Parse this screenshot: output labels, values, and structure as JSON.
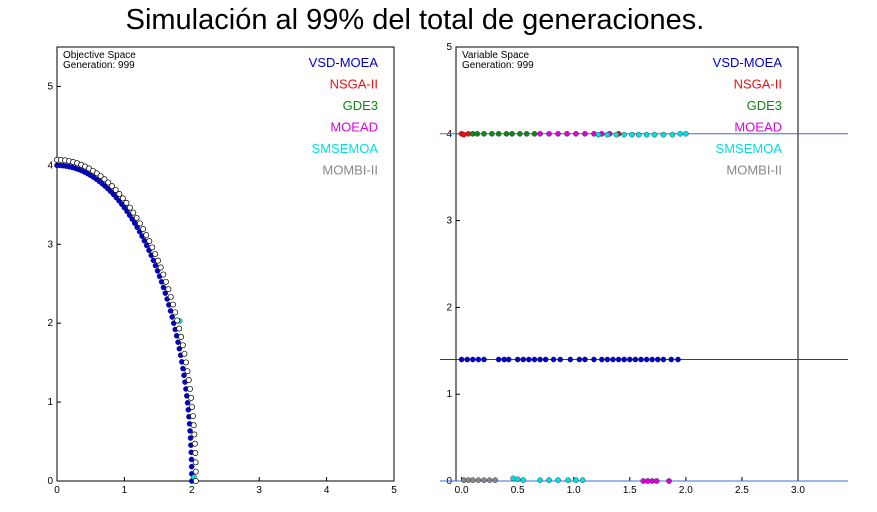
{
  "slide": {
    "title": "Simulación al 99% del total de generaciones."
  },
  "colors": {
    "VSD-MOEA": "#0000cc",
    "NSGA-II": "#ee1111",
    "GDE3": "#118811",
    "MOEAD": "#dd00dd",
    "SMSEMOA": "#00e0e0",
    "MOMBI-II": "#888888"
  },
  "chart_data": [
    {
      "type": "scatter",
      "corner_text": [
        "Objective Space",
        "Generation: 999"
      ],
      "xlim": [
        0,
        5
      ],
      "ylim": [
        0,
        5.5
      ],
      "x_ticks": [
        "0",
        "1",
        "2",
        "3",
        "4",
        "5"
      ],
      "y_ticks": [
        "0",
        "1",
        "2",
        "3",
        "4",
        "5"
      ],
      "legend": [
        "VSD-MOEA",
        "NSGA-II",
        "GDE3",
        "MOEAD",
        "SMSEMOA",
        "MOMBI-II"
      ],
      "legend_position": "top-right",
      "series": [
        {
          "name": "VSD-MOEA",
          "shape": "quarter-arc",
          "radius_x": 2.0,
          "radius_y": 4.0,
          "count": 70,
          "points": []
        },
        {
          "name": "SMSEMOA",
          "points": [
            [
              1.82,
              2.03
            ],
            [
              2.03,
              0.05
            ]
          ]
        },
        {
          "name": "MOMBI-II",
          "shape": "quarter-arc",
          "radius_x": 2.06,
          "radius_y": 4.07,
          "count": 55,
          "hollow": true,
          "points": []
        }
      ]
    },
    {
      "type": "scatter",
      "corner_text": [
        "Variable Space",
        "Generation: 999"
      ],
      "xlim": [
        -0.05,
        3.0
      ],
      "ylim": [
        0,
        5
      ],
      "x_ticks": [
        "0.0",
        "0.5",
        "1.0",
        "1.5",
        "2.0",
        "2.5",
        "3.0"
      ],
      "y_ticks": [
        "0",
        "1",
        "2",
        "3",
        "4",
        "5"
      ],
      "legend": [
        "VSD-MOEA",
        "NSGA-II",
        "GDE3",
        "MOEAD",
        "SMSEMOA",
        "MOMBI-II"
      ],
      "legend_position": "top-right",
      "reference_lines": [
        {
          "y": 4.0,
          "color": "#3a6fd8"
        },
        {
          "y": 1.4,
          "color": "#cc0000"
        },
        {
          "y": 0.0,
          "color": "#3a6fd8"
        }
      ],
      "series": [
        {
          "name": "VSD-MOEA",
          "points": [
            [
              0.0,
              1.4
            ],
            [
              0.05,
              1.4
            ],
            [
              0.1,
              1.4
            ],
            [
              0.15,
              1.4
            ],
            [
              0.2,
              1.4
            ],
            [
              0.33,
              1.4
            ],
            [
              0.38,
              1.4
            ],
            [
              0.42,
              1.4
            ],
            [
              0.5,
              1.4
            ],
            [
              0.55,
              1.4
            ],
            [
              0.6,
              1.4
            ],
            [
              0.65,
              1.4
            ],
            [
              0.7,
              1.4
            ],
            [
              0.75,
              1.4
            ],
            [
              0.82,
              1.4
            ],
            [
              0.88,
              1.4
            ],
            [
              0.97,
              1.4
            ],
            [
              1.05,
              1.4
            ],
            [
              1.1,
              1.4
            ],
            [
              1.18,
              1.4
            ],
            [
              1.25,
              1.4
            ],
            [
              1.3,
              1.4
            ],
            [
              1.35,
              1.4
            ],
            [
              1.4,
              1.4
            ],
            [
              1.45,
              1.4
            ],
            [
              1.5,
              1.4
            ],
            [
              1.55,
              1.4
            ],
            [
              1.6,
              1.4
            ],
            [
              1.65,
              1.4
            ],
            [
              1.7,
              1.4
            ],
            [
              1.75,
              1.4
            ],
            [
              1.8,
              1.4
            ],
            [
              1.87,
              1.4
            ],
            [
              1.93,
              1.4
            ]
          ]
        },
        {
          "name": "NSGA-II",
          "points": [
            [
              0.0,
              4.0
            ],
            [
              0.02,
              3.99
            ],
            [
              0.06,
              4.0
            ],
            [
              1.4,
              4.0
            ]
          ]
        },
        {
          "name": "GDE3",
          "points": [
            [
              0.1,
              4.0
            ],
            [
              0.14,
              4.0
            ],
            [
              0.2,
              4.0
            ],
            [
              0.27,
              4.0
            ],
            [
              0.33,
              4.0
            ],
            [
              0.4,
              4.0
            ],
            [
              0.45,
              4.0
            ],
            [
              0.52,
              4.0
            ],
            [
              0.58,
              4.0
            ],
            [
              0.65,
              4.0
            ]
          ]
        },
        {
          "name": "MOEAD",
          "points": [
            [
              0.7,
              4.0
            ],
            [
              0.78,
              4.0
            ],
            [
              0.86,
              4.0
            ],
            [
              0.94,
              4.0
            ],
            [
              1.02,
              4.0
            ],
            [
              1.1,
              4.0
            ],
            [
              1.18,
              4.0
            ],
            [
              1.25,
              4.0
            ],
            [
              1.32,
              4.0
            ],
            [
              1.62,
              0.0
            ],
            [
              1.66,
              0.0
            ],
            [
              1.7,
              0.0
            ],
            [
              1.74,
              0.0
            ],
            [
              1.85,
              0.0
            ]
          ]
        },
        {
          "name": "SMSEMOA",
          "points": [
            [
              1.22,
              3.99
            ],
            [
              1.3,
              3.99
            ],
            [
              1.38,
              3.99
            ],
            [
              1.45,
              3.99
            ],
            [
              1.52,
              3.99
            ],
            [
              1.58,
              3.99
            ],
            [
              1.65,
              3.99
            ],
            [
              1.72,
              3.99
            ],
            [
              1.8,
              3.99
            ],
            [
              1.88,
              3.99
            ],
            [
              1.95,
              4.0
            ],
            [
              2.0,
              4.0
            ],
            [
              0.46,
              0.03
            ],
            [
              0.5,
              0.02
            ],
            [
              0.55,
              0.01
            ],
            [
              0.7,
              0.01
            ],
            [
              0.78,
              0.01
            ],
            [
              0.86,
              0.01
            ],
            [
              0.95,
              0.01
            ],
            [
              1.02,
              0.01
            ],
            [
              1.08,
              0.01
            ]
          ]
        },
        {
          "name": "MOMBI-II",
          "points": [
            [
              0.02,
              0.01
            ],
            [
              0.06,
              0.01
            ],
            [
              0.1,
              0.01
            ],
            [
              0.15,
              0.01
            ],
            [
              0.2,
              0.01
            ],
            [
              0.25,
              0.01
            ],
            [
              0.3,
              0.01
            ]
          ]
        }
      ]
    }
  ]
}
